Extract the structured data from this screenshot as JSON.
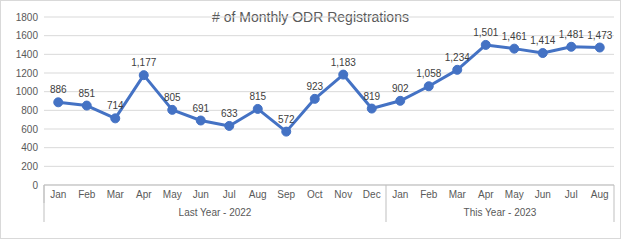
{
  "chart_data": {
    "type": "line",
    "title": "# of Monthly ODR Registrations",
    "categories": [
      "Jan",
      "Feb",
      "Mar",
      "Apr",
      "May",
      "Jun",
      "Jul",
      "Aug",
      "Sep",
      "Oct",
      "Nov",
      "Dec",
      "Jan",
      "Feb",
      "Mar",
      "Apr",
      "May",
      "Jun",
      "Jul",
      "Aug"
    ],
    "category_groups": [
      "Last Year - 2022",
      "Last Year - 2022",
      "Last Year - 2022",
      "Last Year - 2022",
      "Last Year - 2022",
      "Last Year - 2022",
      "Last Year - 2022",
      "Last Year - 2022",
      "Last Year - 2022",
      "Last Year - 2022",
      "Last Year - 2022",
      "Last Year - 2022",
      "This Year - 2023",
      "This Year - 2023",
      "This Year - 2023",
      "This Year - 2023",
      "This Year - 2023",
      "This Year - 2023",
      "This Year - 2023",
      "This Year - 2023"
    ],
    "values": [
      886,
      851,
      714,
      1177,
      805,
      691,
      633,
      815,
      572,
      923,
      1183,
      819,
      902,
      1058,
      1234,
      1501,
      1461,
      1414,
      1481,
      1473
    ],
    "value_labels": [
      "886",
      "851",
      "714",
      "1,177",
      "805",
      "691",
      "633",
      "815",
      "572",
      "923",
      "1,183",
      "819",
      "902",
      "1,058",
      "1,234",
      "1,501",
      "1,461",
      "1,414",
      "1,481",
      "1,473"
    ],
    "color": "#4472c4",
    "marker": "circle",
    "data_labels": true,
    "ylim": [
      0,
      1800
    ],
    "yticks": [
      0,
      200,
      400,
      600,
      800,
      1000,
      1200,
      1400,
      1600,
      1800
    ],
    "grid": true
  }
}
